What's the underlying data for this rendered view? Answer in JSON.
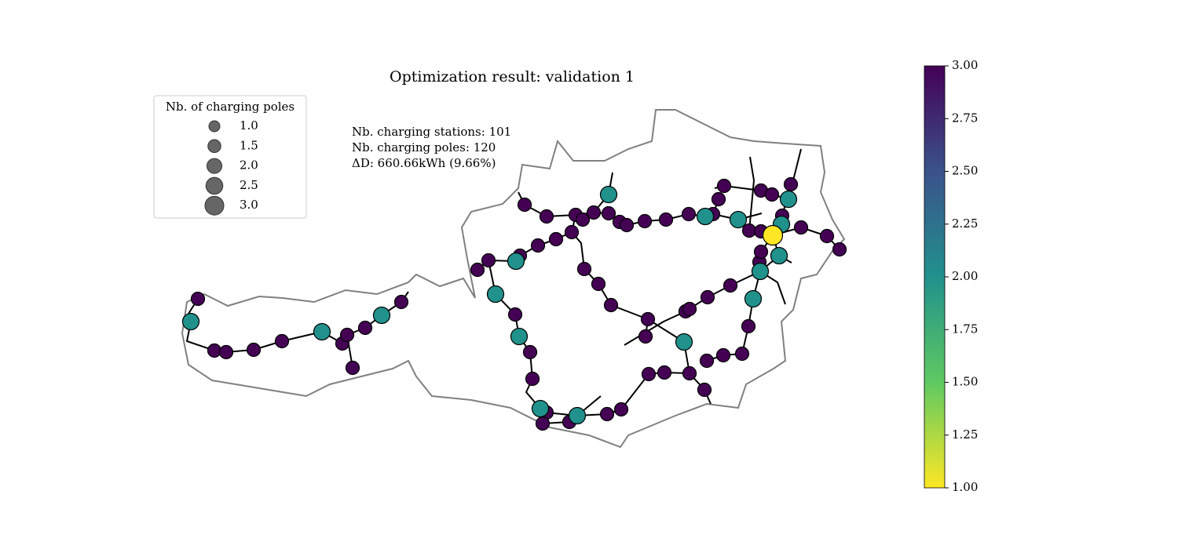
{
  "chart_data": {
    "type": "map",
    "title": "Optimization result: validation 1",
    "annotations": [
      "Nb. charging stations: 101",
      "Nb. charging poles: 120",
      "ΔD: 660.66kWh (9.66%)"
    ],
    "legend": {
      "title": "Nb. of charging poles",
      "entries": [
        {
          "value": 1,
          "label": "1.0"
        },
        {
          "value": 1.5,
          "label": "1.5"
        },
        {
          "value": 2,
          "label": "2.0"
        },
        {
          "value": 2.5,
          "label": "2.5"
        },
        {
          "value": 3,
          "label": "3.0"
        }
      ]
    },
    "colorbar": {
      "colormap": "viridis",
      "lim": [
        1,
        3
      ],
      "ticks": [
        {
          "value": 1,
          "label": "1.00"
        },
        {
          "value": 1.25,
          "label": "1.25"
        },
        {
          "value": 1.5,
          "label": "1.50"
        },
        {
          "value": 1.75,
          "label": "1.75"
        },
        {
          "value": 2,
          "label": "2.00"
        },
        {
          "value": 2.25,
          "label": "2.25"
        },
        {
          "value": 2.5,
          "label": "2.50"
        },
        {
          "value": 2.75,
          "label": "2.75"
        },
        {
          "value": 3,
          "label": "3.00"
        }
      ]
    },
    "stations": [
      1,
      1,
      1,
      1,
      1,
      1,
      1,
      1,
      1,
      1,
      1,
      1,
      1,
      1,
      1,
      1,
      1,
      1,
      1,
      1,
      1,
      1,
      1,
      1,
      1,
      1,
      1,
      1,
      1,
      1,
      1,
      1,
      1,
      1,
      1,
      1,
      1,
      1,
      1,
      1,
      1,
      1,
      1,
      1,
      1,
      1,
      1,
      1,
      1,
      1,
      1,
      1,
      1,
      1,
      1,
      1,
      1,
      1,
      1,
      1,
      1,
      1,
      1,
      1,
      1,
      1,
      2,
      2,
      2,
      2,
      2,
      2,
      2,
      2,
      2,
      2,
      2,
      2,
      2,
      2,
      2,
      2,
      2,
      3
    ]
  }
}
